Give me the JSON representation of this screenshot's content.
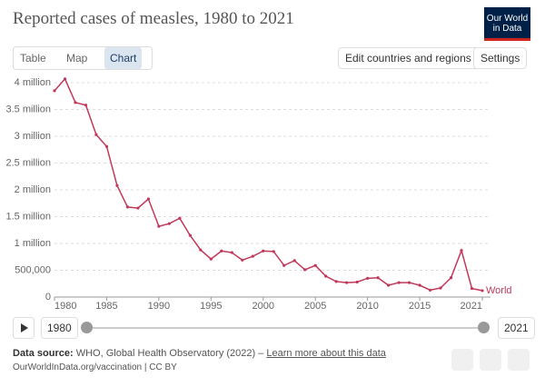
{
  "header": {
    "title": "Reported cases of measles, 1980 to 2021",
    "logo": "Our World in Data"
  },
  "controls": {
    "tabs": [
      "Table",
      "Map",
      "Chart"
    ],
    "edit": "Edit countries and regions",
    "settings": "Settings"
  },
  "timeline": {
    "start": "1980",
    "end": "2021"
  },
  "footer": {
    "source_label": "Data source:",
    "source": "WHO, Global Health Observatory (2022) –",
    "link": "Learn more about this data",
    "url": "OurWorldInData.org/vaccination | CC BY"
  },
  "chart_data": {
    "type": "line",
    "x": [
      1980,
      1981,
      1982,
      1983,
      1984,
      1985,
      1986,
      1987,
      1988,
      1989,
      1990,
      1991,
      1992,
      1993,
      1994,
      1995,
      1996,
      1997,
      1998,
      1999,
      2000,
      2001,
      2002,
      2003,
      2004,
      2005,
      2006,
      2007,
      2008,
      2009,
      2010,
      2011,
      2012,
      2013,
      2014,
      2015,
      2016,
      2017,
      2018,
      2019,
      2020,
      2021
    ],
    "series": [
      {
        "name": "World",
        "color": "#c0395a",
        "values": [
          3850000,
          4070000,
          3630000,
          3580000,
          3030000,
          2810000,
          2080000,
          1680000,
          1660000,
          1830000,
          1320000,
          1370000,
          1470000,
          1150000,
          880000,
          710000,
          860000,
          830000,
          690000,
          760000,
          860000,
          850000,
          590000,
          680000,
          510000,
          590000,
          390000,
          290000,
          270000,
          280000,
          350000,
          360000,
          220000,
          270000,
          270000,
          220000,
          130000,
          170000,
          360000,
          870000,
          160000,
          120000
        ]
      }
    ],
    "xlim": [
      1980,
      2021
    ],
    "xticks": [
      1980,
      1985,
      1990,
      1995,
      2000,
      2005,
      2010,
      2015,
      2021
    ],
    "ylim": [
      0,
      4000000
    ],
    "yticks": [
      0,
      {
        "value": 500000,
        "label": "500,000"
      },
      {
        "value": 1000000,
        "label": "1 million"
      },
      {
        "value": 1500000,
        "label": "1.5 million"
      },
      {
        "value": 2000000,
        "label": "2 million"
      },
      {
        "value": 2500000,
        "label": "2.5 million"
      },
      {
        "value": 3000000,
        "label": "3 million"
      },
      {
        "value": 3500000,
        "label": "3.5 million"
      },
      {
        "value": 4000000,
        "label": "4 million"
      }
    ],
    "grid": true
  }
}
